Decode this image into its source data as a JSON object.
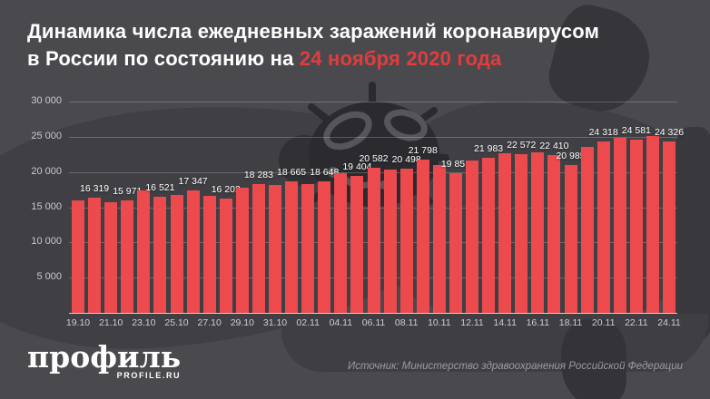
{
  "title": {
    "line1": "Динамика числа ежедневных заражений коронавирусом",
    "line2_prefix": "в России по состоянию на ",
    "line2_highlight": "24 ноября 2020 года"
  },
  "colors": {
    "background": "#4a4a4e",
    "bar": "#ec4a4c",
    "accent_red": "#e23c3d",
    "map_silhouette": "#3f3f44",
    "virus_silhouette": "#2a2a2f",
    "axis_text": "#c9c9ce",
    "source_text": "#9b9ba1"
  },
  "chart_data": {
    "type": "bar",
    "title": "Динамика числа ежедневных заражений коронавирусом в России по состоянию на 24 ноября 2020 года",
    "xlabel": "",
    "ylabel": "",
    "ylim": [
      0,
      30000
    ],
    "grid": true,
    "legend": false,
    "bar_color": "#ec4a4c",
    "yticks": [
      {
        "value": 5000,
        "label": "5 000"
      },
      {
        "value": 10000,
        "label": "10 000"
      },
      {
        "value": 15000,
        "label": "15 000"
      },
      {
        "value": 20000,
        "label": "20 000"
      },
      {
        "value": 25000,
        "label": "25 000"
      },
      {
        "value": 30000,
        "label": "30 000"
      }
    ],
    "x": [
      "19.10",
      "20.10",
      "21.10",
      "22.10",
      "23.10",
      "24.10",
      "25.10",
      "26.10",
      "27.10",
      "28.10",
      "29.10",
      "30.10",
      "31.10",
      "01.11",
      "02.11",
      "03.11",
      "04.11",
      "05.11",
      "06.11",
      "07.11",
      "08.11",
      "09.11",
      "10.11",
      "11.11",
      "12.11",
      "13.11",
      "14.11",
      "15.11",
      "16.11",
      "17.11",
      "18.11",
      "19.11",
      "20.11",
      "21.11",
      "22.11",
      "23.11",
      "24.11"
    ],
    "values": [
      15982,
      16319,
      15700,
      15971,
      17340,
      16521,
      16710,
      17347,
      16550,
      16202,
      17717,
      18283,
      18140,
      18665,
      18257,
      18648,
      19768,
      19404,
      20582,
      20396,
      20498,
      21798,
      20977,
      19851,
      21608,
      21983,
      22702,
      22572,
      22778,
      22410,
      20985,
      23610,
      24318,
      24822,
      24581,
      25173,
      24326
    ],
    "bar_labels": [
      null,
      "16 319",
      null,
      "15 971",
      null,
      "16 521",
      null,
      "17 347",
      null,
      "16 202",
      null,
      "18 283",
      null,
      "18 665",
      null,
      "18 648",
      null,
      "19 404",
      "20 582",
      null,
      "20 498",
      "21 798",
      null,
      "19 851",
      null,
      "21 983",
      null,
      "22 572",
      null,
      "22 410",
      "20 985",
      null,
      "24 318",
      null,
      "24 581",
      null,
      "24 326"
    ],
    "x_tick_labels": [
      "19.10",
      "21.10",
      "23.10",
      "25.10",
      "27.10",
      "29.10",
      "31.10",
      "02.11",
      "04.11",
      "06.11",
      "08.11",
      "10.11",
      "12.11",
      "14.11",
      "16.11",
      "18.11",
      "20.11",
      "22.11",
      "24.11"
    ]
  },
  "footer": {
    "logo_main": "профиль",
    "logo_sub": "PROFILE.RU",
    "source": "Источник: Министерство здравоохранения Российской Федерации"
  }
}
